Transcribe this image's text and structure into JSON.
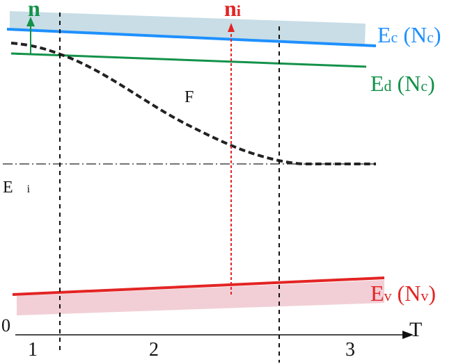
{
  "labels": {
    "n_main": "n",
    "ni_main": "n",
    "ni_sub": "i",
    "ec_main": "E",
    "ec_sub": "c",
    "ec_paren_open": " (N",
    "ec_paren_sub": "c",
    "ec_paren_close": ")",
    "ed_main": "E",
    "ed_sub": "d",
    "ed_paren_open": " (N",
    "ed_paren_sub": "c",
    "ed_paren_close": ")",
    "ev_main": "E",
    "ev_sub": "v",
    "ev_paren_open": " (N",
    "ev_paren_sub": "v",
    "ev_paren_close": ")",
    "f_label": "F",
    "ei_main": "E",
    "ei_sub": "i",
    "zero": "0",
    "t_axis": "T",
    "region_1": "1",
    "region_2": "2",
    "region_3": "3"
  },
  "colors": {
    "ec_line": "#1e90ff",
    "ec_band": "#c8dde6",
    "ed_line": "#13924a",
    "ev_line": "#e32424",
    "ev_band": "#f2cfd6",
    "ni_arrow": "#e32424",
    "n_arrow": "#13924a",
    "fermi": "#222222"
  }
}
